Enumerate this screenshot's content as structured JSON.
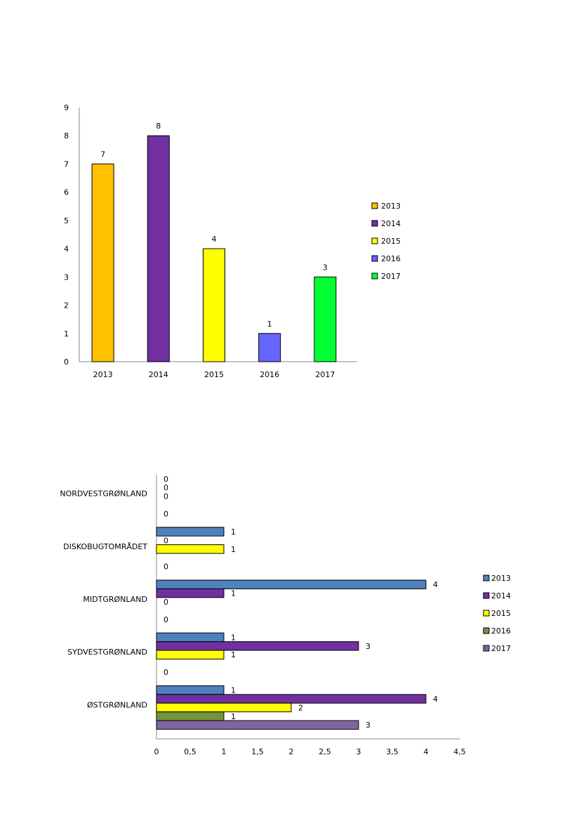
{
  "chart_data": [
    {
      "type": "bar",
      "categories": [
        "2013",
        "2014",
        "2015",
        "2016",
        "2017"
      ],
      "values": [
        7,
        8,
        4,
        1,
        3
      ],
      "ylim": [
        0,
        9
      ],
      "yticks": [
        "0",
        "1",
        "2",
        "3",
        "4",
        "5",
        "6",
        "7",
        "8",
        "9"
      ],
      "data_labels": [
        "7",
        "8",
        "4",
        "1",
        "3"
      ],
      "colors": [
        "#FFC000",
        "#7030A0",
        "#FFFF00",
        "#6666FF",
        "#00FF33"
      ],
      "legend": {
        "position": "right",
        "entries": [
          "2013",
          "2014",
          "2015",
          "2016",
          "2017"
        ]
      },
      "grid": false
    },
    {
      "type": "bar",
      "orientation": "horizontal",
      "categories": [
        "NORDVESTGRØNLAND",
        "DISKOBUGTOMRÅDET",
        "MIDTGRØNLAND",
        "SYDVESTGRØNLAND",
        "ØSTGRØNLAND"
      ],
      "series": [
        {
          "name": "2013",
          "color": "#4F81BD",
          "values": [
            0,
            1,
            4,
            1,
            1
          ],
          "labels": [
            "0",
            "1",
            "4",
            "1",
            "1"
          ]
        },
        {
          "name": "2014",
          "color": "#7030A0",
          "values": [
            0,
            0,
            1,
            3,
            4
          ],
          "labels": [
            "0",
            "0",
            "1",
            "3",
            "4"
          ]
        },
        {
          "name": "2015",
          "color": "#FFFF00",
          "values": [
            0,
            1,
            0,
            1,
            2
          ],
          "labels": [
            "0",
            "1",
            "0",
            "1",
            "2"
          ]
        },
        {
          "name": "2016",
          "color": "#77933C",
          "values": [
            0,
            0,
            0,
            0,
            1
          ],
          "labels": [
            "",
            "",
            "",
            "",
            "1"
          ]
        },
        {
          "name": "2017",
          "color": "#8064A2",
          "values": [
            0,
            0,
            0,
            0,
            3
          ],
          "labels": [
            "0",
            "0",
            "0",
            "0",
            "3"
          ]
        }
      ],
      "xlim": [
        0,
        4.5
      ],
      "xticks": [
        "0",
        "0,5",
        "1",
        "1,5",
        "2",
        "2,5",
        "3",
        "3,5",
        "4",
        "4,5"
      ],
      "legend": {
        "position": "right",
        "entries": [
          "2013",
          "2014",
          "2015",
          "2016",
          "2017"
        ]
      },
      "grid": false
    }
  ]
}
